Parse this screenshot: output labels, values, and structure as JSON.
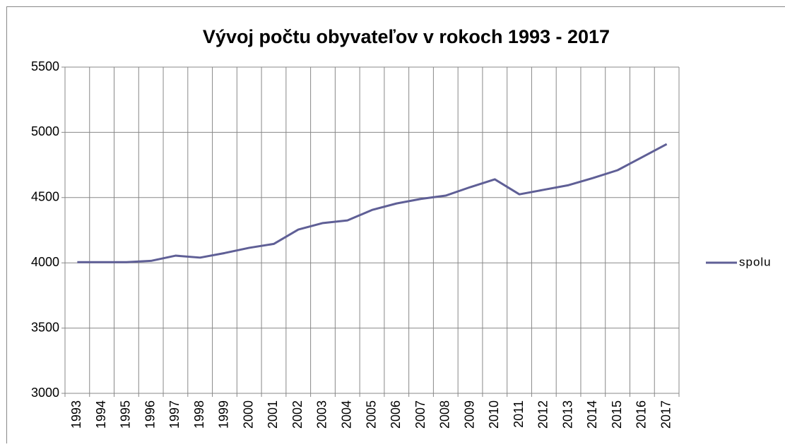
{
  "chart_data": {
    "type": "line",
    "title": "Vývoj počtu obyvateľov v rokoch 1993 - 2017",
    "categories": [
      "1993",
      "1994",
      "1995",
      "1996",
      "1997",
      "1998",
      "1999",
      "2000",
      "2001",
      "2002",
      "2003",
      "2004",
      "2005",
      "2006",
      "2007",
      "2008",
      "2009",
      "2010",
      "2011",
      "2012",
      "2013",
      "2014",
      "2015",
      "2016",
      "2017"
    ],
    "series": [
      {
        "name": "spolu",
        "color": "#5f5f96",
        "values": [
          4005,
          4005,
          4005,
          4015,
          4055,
          4040,
          4075,
          4115,
          4145,
          4255,
          4305,
          4325,
          4405,
          4455,
          4490,
          4515,
          4580,
          4640,
          4525,
          4560,
          4595,
          4650,
          4710,
          4810,
          4910
        ]
      }
    ],
    "ylim": [
      3000,
      5500
    ],
    "yticks": [
      3000,
      3500,
      4000,
      4500,
      5000,
      5500
    ],
    "grid": true,
    "legend": "right"
  }
}
